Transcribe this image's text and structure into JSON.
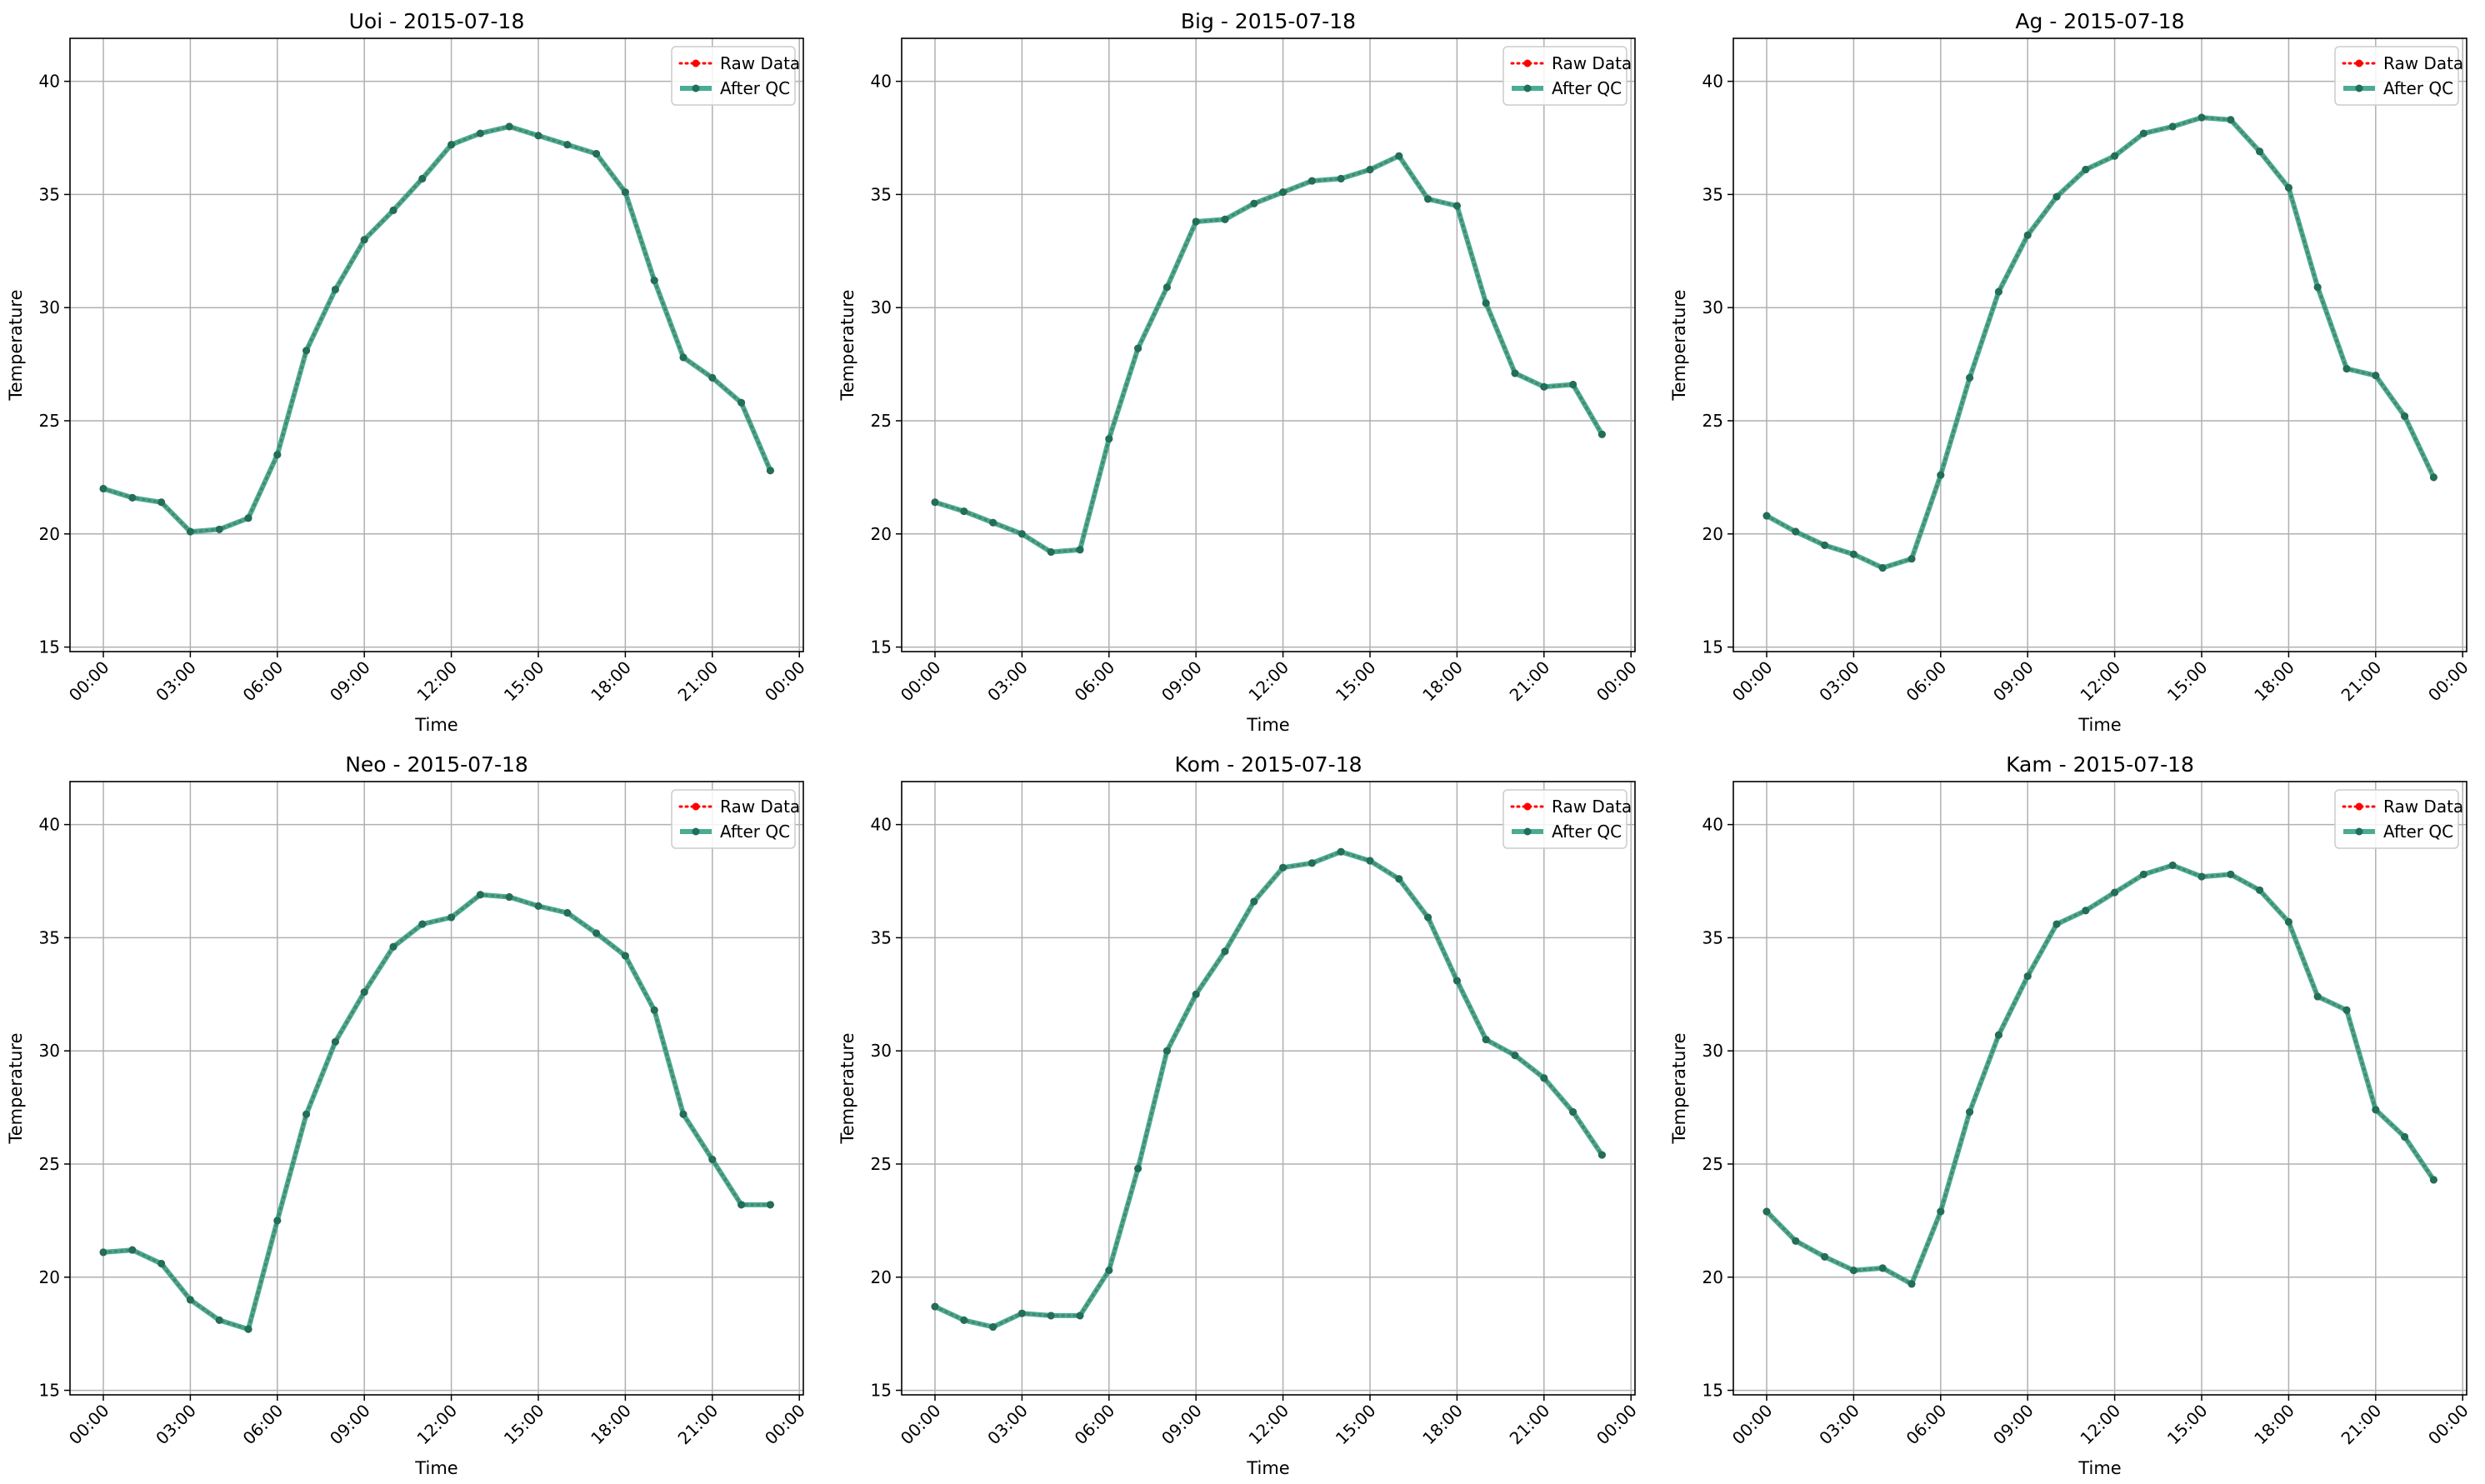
{
  "colors": {
    "raw": "#ff0000",
    "qc": "#2a9d7f",
    "qc_marker": "#1f6f5a",
    "grid": "#b0b0b0",
    "axis": "#000000"
  },
  "legend": {
    "raw_label": "Raw Data",
    "qc_label": "After QC",
    "placement": "upper-right"
  },
  "chart_data": [
    {
      "type": "line",
      "title": "Uoi - 2015-07-18",
      "xlabel": "Time",
      "ylabel": "Temperature",
      "x": [
        "00:00",
        "01:00",
        "02:00",
        "03:00",
        "04:00",
        "05:00",
        "06:00",
        "07:00",
        "08:00",
        "09:00",
        "10:00",
        "11:00",
        "12:00",
        "13:00",
        "14:00",
        "15:00",
        "16:00",
        "17:00",
        "18:00",
        "19:00",
        "20:00",
        "21:00",
        "22:00",
        "23:00"
      ],
      "xticks": [
        "00:00",
        "03:00",
        "06:00",
        "09:00",
        "12:00",
        "15:00",
        "18:00",
        "21:00",
        "00:00"
      ],
      "yticks": [
        15,
        20,
        25,
        30,
        35,
        40
      ],
      "ylim": [
        14.8,
        41.9
      ],
      "grid": true,
      "series": [
        {
          "name": "Raw Data",
          "values": [
            22.0,
            21.6,
            21.4,
            20.1,
            20.2,
            20.7,
            23.5,
            28.1,
            30.8,
            33.0,
            34.3,
            35.7,
            37.2,
            37.7,
            38.0,
            37.6,
            37.2,
            36.8,
            35.1,
            31.2,
            27.8,
            26.9,
            25.8,
            22.8
          ]
        },
        {
          "name": "After QC",
          "values": [
            22.0,
            21.6,
            21.4,
            20.1,
            20.2,
            20.7,
            23.5,
            28.1,
            30.8,
            33.0,
            34.3,
            35.7,
            37.2,
            37.7,
            38.0,
            37.6,
            37.2,
            36.8,
            35.1,
            31.2,
            27.8,
            26.9,
            25.8,
            22.8
          ]
        }
      ]
    },
    {
      "type": "line",
      "title": "Big - 2015-07-18",
      "xlabel": "Time",
      "ylabel": "Temperature",
      "x": [
        "00:00",
        "01:00",
        "02:00",
        "03:00",
        "04:00",
        "05:00",
        "06:00",
        "07:00",
        "08:00",
        "09:00",
        "10:00",
        "11:00",
        "12:00",
        "13:00",
        "14:00",
        "15:00",
        "16:00",
        "17:00",
        "18:00",
        "19:00",
        "20:00",
        "21:00",
        "22:00",
        "23:00"
      ],
      "xticks": [
        "00:00",
        "03:00",
        "06:00",
        "09:00",
        "12:00",
        "15:00",
        "18:00",
        "21:00",
        "00:00"
      ],
      "yticks": [
        15,
        20,
        25,
        30,
        35,
        40
      ],
      "ylim": [
        14.8,
        41.9
      ],
      "grid": true,
      "series": [
        {
          "name": "Raw Data",
          "values": [
            21.4,
            21.0,
            20.5,
            20.0,
            19.2,
            19.3,
            24.2,
            28.2,
            30.9,
            33.8,
            33.9,
            34.6,
            35.1,
            35.6,
            35.7,
            36.1,
            36.7,
            34.8,
            34.5,
            30.2,
            27.1,
            26.5,
            26.6,
            24.4
          ]
        },
        {
          "name": "After QC",
          "values": [
            21.4,
            21.0,
            20.5,
            20.0,
            19.2,
            19.3,
            24.2,
            28.2,
            30.9,
            33.8,
            33.9,
            34.6,
            35.1,
            35.6,
            35.7,
            36.1,
            36.7,
            34.8,
            34.5,
            30.2,
            27.1,
            26.5,
            26.6,
            24.4
          ]
        }
      ]
    },
    {
      "type": "line",
      "title": "Ag - 2015-07-18",
      "xlabel": "Time",
      "ylabel": "Temperature",
      "x": [
        "00:00",
        "01:00",
        "02:00",
        "03:00",
        "04:00",
        "05:00",
        "06:00",
        "07:00",
        "08:00",
        "09:00",
        "10:00",
        "11:00",
        "12:00",
        "13:00",
        "14:00",
        "15:00",
        "16:00",
        "17:00",
        "18:00",
        "19:00",
        "20:00",
        "21:00",
        "22:00",
        "23:00"
      ],
      "xticks": [
        "00:00",
        "03:00",
        "06:00",
        "09:00",
        "12:00",
        "15:00",
        "18:00",
        "21:00",
        "00:00"
      ],
      "yticks": [
        15,
        20,
        25,
        30,
        35,
        40
      ],
      "ylim": [
        14.8,
        41.9
      ],
      "grid": true,
      "series": [
        {
          "name": "Raw Data",
          "values": [
            20.8,
            20.1,
            19.5,
            19.1,
            18.5,
            18.9,
            22.6,
            26.9,
            30.7,
            33.2,
            34.9,
            36.1,
            36.7,
            37.7,
            38.0,
            38.4,
            38.3,
            36.9,
            35.3,
            30.9,
            27.3,
            27.0,
            25.2,
            22.5
          ]
        },
        {
          "name": "After QC",
          "values": [
            20.8,
            20.1,
            19.5,
            19.1,
            18.5,
            18.9,
            22.6,
            26.9,
            30.7,
            33.2,
            34.9,
            36.1,
            36.7,
            37.7,
            38.0,
            38.4,
            38.3,
            36.9,
            35.3,
            30.9,
            27.3,
            27.0,
            25.2,
            22.5
          ]
        }
      ]
    },
    {
      "type": "line",
      "title": "Neo - 2015-07-18",
      "xlabel": "Time",
      "ylabel": "Temperature",
      "x": [
        "00:00",
        "01:00",
        "02:00",
        "03:00",
        "04:00",
        "05:00",
        "06:00",
        "07:00",
        "08:00",
        "09:00",
        "10:00",
        "11:00",
        "12:00",
        "13:00",
        "14:00",
        "15:00",
        "16:00",
        "17:00",
        "18:00",
        "19:00",
        "20:00",
        "21:00",
        "22:00",
        "23:00"
      ],
      "xticks": [
        "00:00",
        "03:00",
        "06:00",
        "09:00",
        "12:00",
        "15:00",
        "18:00",
        "21:00",
        "00:00"
      ],
      "yticks": [
        15,
        20,
        25,
        30,
        35,
        40
      ],
      "ylim": [
        14.8,
        41.9
      ],
      "grid": true,
      "series": [
        {
          "name": "Raw Data",
          "values": [
            21.1,
            21.2,
            20.6,
            19.0,
            18.1,
            17.7,
            22.5,
            27.2,
            30.4,
            32.6,
            34.6,
            35.6,
            35.9,
            36.9,
            36.8,
            36.4,
            36.1,
            35.2,
            34.2,
            31.8,
            27.2,
            25.2,
            23.2,
            23.2
          ]
        },
        {
          "name": "After QC",
          "values": [
            21.1,
            21.2,
            20.6,
            19.0,
            18.1,
            17.7,
            22.5,
            27.2,
            30.4,
            32.6,
            34.6,
            35.6,
            35.9,
            36.9,
            36.8,
            36.4,
            36.1,
            35.2,
            34.2,
            31.8,
            27.2,
            25.2,
            23.2,
            23.2
          ]
        }
      ]
    },
    {
      "type": "line",
      "title": "Kom - 2015-07-18",
      "xlabel": "Time",
      "ylabel": "Temperature",
      "x": [
        "00:00",
        "01:00",
        "02:00",
        "03:00",
        "04:00",
        "05:00",
        "06:00",
        "07:00",
        "08:00",
        "09:00",
        "10:00",
        "11:00",
        "12:00",
        "13:00",
        "14:00",
        "15:00",
        "16:00",
        "17:00",
        "18:00",
        "19:00",
        "20:00",
        "21:00",
        "22:00",
        "23:00"
      ],
      "xticks": [
        "00:00",
        "03:00",
        "06:00",
        "09:00",
        "12:00",
        "15:00",
        "18:00",
        "21:00",
        "00:00"
      ],
      "yticks": [
        15,
        20,
        25,
        30,
        35,
        40
      ],
      "ylim": [
        14.8,
        41.9
      ],
      "grid": true,
      "series": [
        {
          "name": "Raw Data",
          "values": [
            18.7,
            18.1,
            17.8,
            18.4,
            18.3,
            18.3,
            20.3,
            24.8,
            30.0,
            32.5,
            34.4,
            36.6,
            38.1,
            38.3,
            38.8,
            38.4,
            37.6,
            35.9,
            33.1,
            30.5,
            29.8,
            28.8,
            27.3,
            25.4
          ]
        },
        {
          "name": "After QC",
          "values": [
            18.7,
            18.1,
            17.8,
            18.4,
            18.3,
            18.3,
            20.3,
            24.8,
            30.0,
            32.5,
            34.4,
            36.6,
            38.1,
            38.3,
            38.8,
            38.4,
            37.6,
            35.9,
            33.1,
            30.5,
            29.8,
            28.8,
            27.3,
            25.4
          ]
        }
      ]
    },
    {
      "type": "line",
      "title": "Kam - 2015-07-18",
      "xlabel": "Time",
      "ylabel": "Temperature",
      "x": [
        "00:00",
        "01:00",
        "02:00",
        "03:00",
        "04:00",
        "05:00",
        "06:00",
        "07:00",
        "08:00",
        "09:00",
        "10:00",
        "11:00",
        "12:00",
        "13:00",
        "14:00",
        "15:00",
        "16:00",
        "17:00",
        "18:00",
        "19:00",
        "20:00",
        "21:00",
        "22:00",
        "23:00"
      ],
      "xticks": [
        "00:00",
        "03:00",
        "06:00",
        "09:00",
        "12:00",
        "15:00",
        "18:00",
        "21:00",
        "00:00"
      ],
      "yticks": [
        15,
        20,
        25,
        30,
        35,
        40
      ],
      "ylim": [
        14.8,
        41.9
      ],
      "grid": true,
      "series": [
        {
          "name": "Raw Data",
          "values": [
            22.9,
            21.6,
            20.9,
            20.3,
            20.4,
            19.7,
            22.9,
            27.3,
            30.7,
            33.3,
            35.6,
            36.2,
            37.0,
            37.8,
            38.2,
            37.7,
            37.8,
            37.1,
            35.7,
            32.4,
            31.8,
            27.4,
            26.2,
            24.3
          ]
        },
        {
          "name": "After QC",
          "values": [
            22.9,
            21.6,
            20.9,
            20.3,
            20.4,
            19.7,
            22.9,
            27.3,
            30.7,
            33.3,
            35.6,
            36.2,
            37.0,
            37.8,
            38.2,
            37.7,
            37.8,
            37.1,
            35.7,
            32.4,
            31.8,
            27.4,
            26.2,
            24.3
          ]
        }
      ]
    }
  ]
}
